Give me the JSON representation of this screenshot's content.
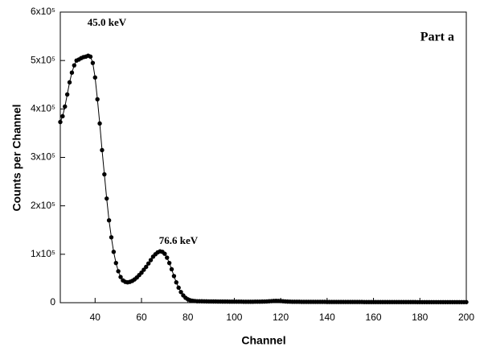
{
  "chart_data": {
    "type": "line",
    "xlabel": "Channel",
    "ylabel": "Counts per Channel",
    "annotations": [
      "45.0 keV",
      "76.6 keV",
      "Part a"
    ],
    "color": "#000000",
    "markers": true,
    "xlim": [
      25,
      200
    ],
    "xticks": [
      40,
      60,
      80,
      100,
      120,
      140,
      160,
      180,
      200
    ],
    "ylim": [
      0,
      600000
    ],
    "yticks": [
      0,
      {
        "value": 100000,
        "label": "1x10⁵"
      },
      {
        "value": 200000,
        "label": "2x10⁵"
      },
      {
        "value": 300000,
        "label": "3x10⁵"
      },
      {
        "value": 400000,
        "label": "4x10⁵"
      },
      {
        "value": 500000,
        "label": "5x10⁵"
      },
      {
        "value": 600000,
        "label": "6x10⁵"
      }
    ],
    "x": [
      25,
      26,
      27,
      28,
      29,
      30,
      31,
      32,
      33,
      34,
      35,
      36,
      37,
      38,
      39,
      40,
      41,
      42,
      43,
      44,
      45,
      46,
      47,
      48,
      49,
      50,
      51,
      52,
      53,
      54,
      55,
      56,
      57,
      58,
      59,
      60,
      61,
      62,
      63,
      64,
      65,
      66,
      67,
      68,
      69,
      70,
      71,
      72,
      73,
      74,
      75,
      76,
      77,
      78,
      79,
      80,
      81,
      82,
      83,
      84,
      85,
      86,
      87,
      88,
      89,
      90,
      91,
      92,
      93,
      94,
      95,
      96,
      97,
      98,
      99,
      100,
      101,
      102,
      103,
      104,
      105,
      106,
      107,
      108,
      109,
      110,
      111,
      112,
      113,
      114,
      115,
      116,
      117,
      118,
      119,
      120,
      121,
      122,
      123,
      124,
      125,
      126,
      127,
      128,
      129,
      130,
      131,
      132,
      133,
      134,
      135,
      136,
      137,
      138,
      139,
      140,
      141,
      142,
      143,
      144,
      145,
      146,
      147,
      148,
      149,
      150,
      151,
      152,
      153,
      154,
      155,
      156,
      157,
      158,
      159,
      160,
      161,
      162,
      163,
      164,
      165,
      166,
      167,
      168,
      169,
      170,
      171,
      172,
      173,
      174,
      175,
      176,
      177,
      178,
      179,
      180,
      181,
      182,
      183,
      184,
      185,
      186,
      187,
      188,
      189,
      190,
      191,
      192,
      193,
      194,
      195,
      196,
      197,
      198,
      199,
      200
    ],
    "values": [
      373000,
      385000,
      405000,
      430000,
      455000,
      475000,
      490000,
      500000,
      502000,
      505000,
      507000,
      508000,
      510000,
      508000,
      495000,
      465000,
      420000,
      370000,
      315000,
      265000,
      215000,
      170000,
      135000,
      105000,
      82000,
      65000,
      53000,
      46000,
      43000,
      42000,
      43000,
      45000,
      48000,
      52000,
      57000,
      62000,
      68000,
      74000,
      81000,
      88000,
      95000,
      100000,
      104000,
      106000,
      105000,
      101000,
      93000,
      82000,
      69000,
      55000,
      42000,
      31000,
      22000,
      15000,
      10000,
      7000,
      5000,
      4000,
      3500,
      3000,
      3000,
      2900,
      2800,
      2700,
      2600,
      2600,
      2500,
      2500,
      2400,
      2400,
      2300,
      2300,
      2300,
      2200,
      2200,
      2200,
      2100,
      2100,
      2100,
      2000,
      2000,
      2000,
      2000,
      2000,
      2100,
      2100,
      2200,
      2300,
      2400,
      2600,
      2900,
      3300,
      3600,
      3800,
      3700,
      3400,
      3000,
      2600,
      2300,
      2100,
      2000,
      1900,
      1900,
      1900,
      1800,
      1800,
      1800,
      1800,
      1800,
      1700,
      1700,
      1700,
      1700,
      1700,
      1700,
      1600,
      1600,
      1600,
      1600,
      1600,
      1600,
      1600,
      1500,
      1500,
      1500,
      1500,
      1500,
      1500,
      1500,
      1500,
      1500,
      1400,
      1400,
      1400,
      1400,
      1400,
      1400,
      1400,
      1400,
      1400,
      1400,
      1400,
      1300,
      1300,
      1300,
      1300,
      1300,
      1300,
      1300,
      1300,
      1300,
      1300,
      1300,
      1300,
      1200,
      1200,
      1200,
      1200,
      1200,
      1200,
      1200,
      1200,
      1200,
      1200,
      1200,
      1200,
      1200,
      1200,
      1200,
      1200,
      1200,
      1200,
      1200,
      1200,
      1200,
      1200
    ]
  }
}
